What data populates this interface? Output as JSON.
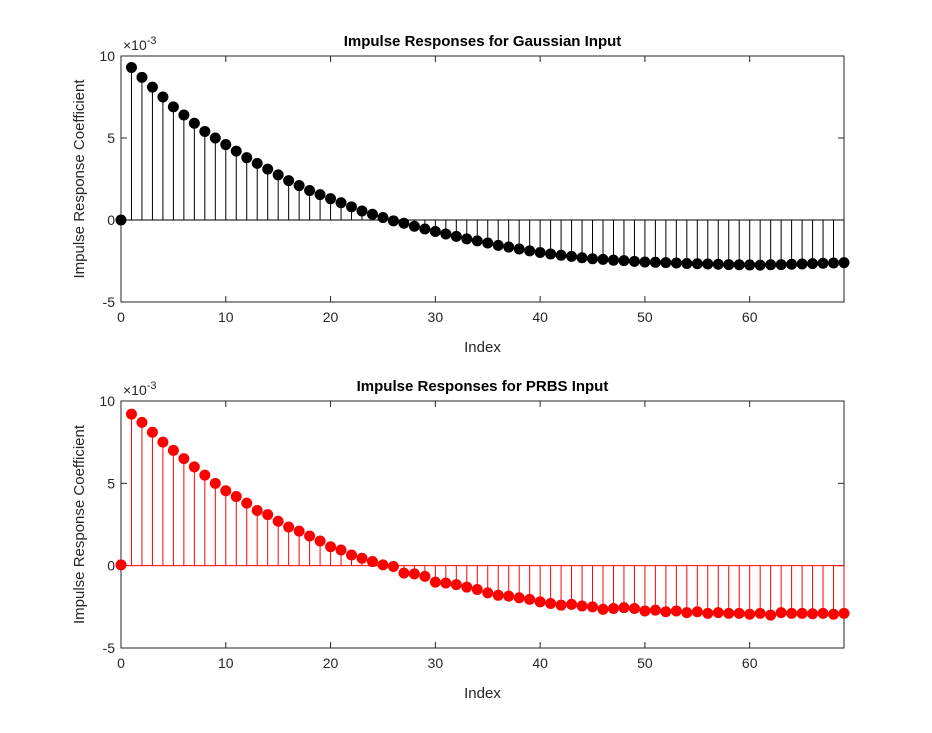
{
  "chart_data": [
    {
      "type": "stem",
      "title": "Impulse Responses for Gaussian Input",
      "xlabel": "Index",
      "ylabel": "Impulse Response Coefficient",
      "exponent_label": "×10",
      "exponent_power": "-3",
      "xlim": [
        0,
        69
      ],
      "ylim": [
        -5,
        10
      ],
      "xticks": [
        0,
        10,
        20,
        30,
        40,
        50,
        60
      ],
      "yticks": [
        -5,
        0,
        5,
        10
      ],
      "color": "#000000",
      "grid": false,
      "x": [
        0,
        1,
        2,
        3,
        4,
        5,
        6,
        7,
        8,
        9,
        10,
        11,
        12,
        13,
        14,
        15,
        16,
        17,
        18,
        19,
        20,
        21,
        22,
        23,
        24,
        25,
        26,
        27,
        28,
        29,
        30,
        31,
        32,
        33,
        34,
        35,
        36,
        37,
        38,
        39,
        40,
        41,
        42,
        43,
        44,
        45,
        46,
        47,
        48,
        49,
        50,
        51,
        52,
        53,
        54,
        55,
        56,
        57,
        58,
        59,
        60,
        61,
        62,
        63,
        64,
        65,
        66,
        67,
        68,
        69
      ],
      "values": [
        0,
        9.3,
        8.7,
        8.1,
        7.5,
        6.9,
        6.4,
        5.9,
        5.4,
        5.0,
        4.6,
        4.2,
        3.8,
        3.45,
        3.1,
        2.75,
        2.4,
        2.1,
        1.8,
        1.55,
        1.3,
        1.05,
        0.8,
        0.55,
        0.35,
        0.15,
        -0.05,
        -0.2,
        -0.38,
        -0.55,
        -0.7,
        -0.85,
        -1.0,
        -1.15,
        -1.27,
        -1.4,
        -1.55,
        -1.65,
        -1.77,
        -1.88,
        -1.98,
        -2.07,
        -2.15,
        -2.22,
        -2.3,
        -2.36,
        -2.4,
        -2.45,
        -2.48,
        -2.52,
        -2.56,
        -2.58,
        -2.6,
        -2.62,
        -2.65,
        -2.67,
        -2.68,
        -2.7,
        -2.72,
        -2.73,
        -2.74,
        -2.75,
        -2.73,
        -2.72,
        -2.7,
        -2.68,
        -2.66,
        -2.64,
        -2.62,
        -2.6
      ]
    },
    {
      "type": "stem",
      "title": "Impulse Responses for PRBS Input",
      "xlabel": "Index",
      "ylabel": "Impulse Response Coefficient",
      "exponent_label": "×10",
      "exponent_power": "-3",
      "xlim": [
        0,
        69
      ],
      "ylim": [
        -5,
        10
      ],
      "xticks": [
        0,
        10,
        20,
        30,
        40,
        50,
        60
      ],
      "yticks": [
        -5,
        0,
        5,
        10
      ],
      "color": "#ff0000",
      "grid": false,
      "x": [
        0,
        1,
        2,
        3,
        4,
        5,
        6,
        7,
        8,
        9,
        10,
        11,
        12,
        13,
        14,
        15,
        16,
        17,
        18,
        19,
        20,
        21,
        22,
        23,
        24,
        25,
        26,
        27,
        28,
        29,
        30,
        31,
        32,
        33,
        34,
        35,
        36,
        37,
        38,
        39,
        40,
        41,
        42,
        43,
        44,
        45,
        46,
        47,
        48,
        49,
        50,
        51,
        52,
        53,
        54,
        55,
        56,
        57,
        58,
        59,
        60,
        61,
        62,
        63,
        64,
        65,
        66,
        67,
        68,
        69
      ],
      "values": [
        0.05,
        9.2,
        8.7,
        8.1,
        7.5,
        7.0,
        6.5,
        6.0,
        5.5,
        5.0,
        4.55,
        4.2,
        3.8,
        3.35,
        3.1,
        2.7,
        2.35,
        2.1,
        1.8,
        1.5,
        1.15,
        0.95,
        0.65,
        0.45,
        0.25,
        0.05,
        -0.05,
        -0.45,
        -0.5,
        -0.65,
        -1.0,
        -1.05,
        -1.15,
        -1.3,
        -1.45,
        -1.65,
        -1.8,
        -1.85,
        -1.95,
        -2.05,
        -2.2,
        -2.3,
        -2.4,
        -2.35,
        -2.45,
        -2.5,
        -2.65,
        -2.6,
        -2.55,
        -2.6,
        -2.75,
        -2.7,
        -2.8,
        -2.75,
        -2.85,
        -2.8,
        -2.9,
        -2.85,
        -2.9,
        -2.9,
        -2.95,
        -2.9,
        -3.0,
        -2.85,
        -2.9,
        -2.9,
        -2.92,
        -2.9,
        -2.95,
        -2.9
      ]
    }
  ]
}
